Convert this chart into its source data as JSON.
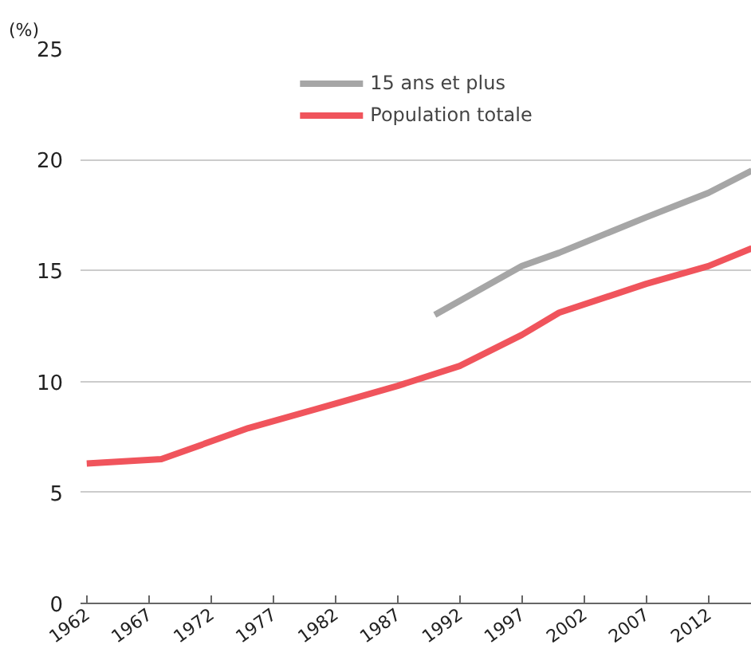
{
  "chart_data": {
    "type": "line",
    "ylabel": "(%)",
    "xlim": [
      1961.5,
      2015.5
    ],
    "xticks": [
      1962,
      1967,
      1972,
      1977,
      1982,
      1987,
      1992,
      1997,
      2002,
      2007,
      2012
    ],
    "ylim": [
      0,
      25
    ],
    "yticks": [
      0,
      5,
      10,
      15,
      20,
      25
    ],
    "grid": "y",
    "legend": "top",
    "series": [
      {
        "name": "15 ans et plus",
        "color": "#a6a6a6",
        "x": [
          1990,
          1997,
          2000,
          2007,
          2012,
          2015.5
        ],
        "values": [
          13.0,
          15.2,
          15.8,
          17.4,
          18.5,
          19.5
        ]
      },
      {
        "name": "Population totale",
        "color": "#f0545c",
        "x": [
          1962,
          1968,
          1975,
          1982,
          1987,
          1992,
          1997,
          2000,
          2007,
          2012,
          2015.5
        ],
        "values": [
          6.3,
          6.5,
          7.9,
          9.0,
          9.8,
          10.7,
          12.1,
          13.1,
          14.4,
          15.2,
          16.0
        ]
      }
    ]
  }
}
